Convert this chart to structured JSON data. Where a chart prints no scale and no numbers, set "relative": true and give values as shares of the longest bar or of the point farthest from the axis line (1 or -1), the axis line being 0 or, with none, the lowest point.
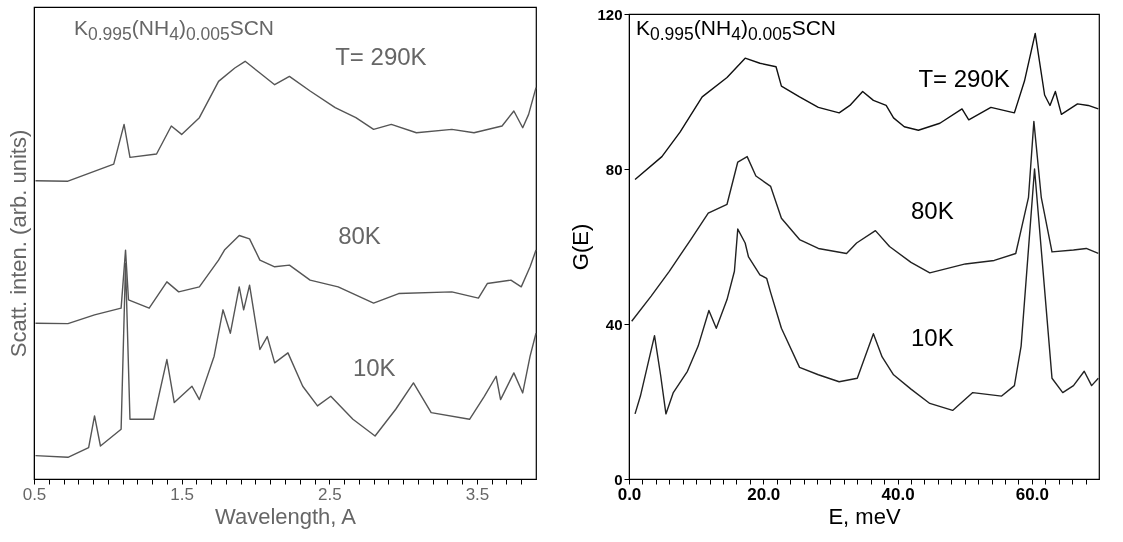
{
  "chart_data": [
    {
      "type": "line",
      "relative": true,
      "tick_labels": "x",
      "xlabel": "Wavelength, A",
      "ylabel": "Scatt. inten. (arb. units)",
      "annotations": [
        "K$_{0.995}$(NH$_{4}$)$_{0.005}$SCN"
      ],
      "xlim": [
        0.5,
        3.9
      ],
      "xticks": [
        0.5,
        {
          "value": 0.6,
          "label": null
        },
        {
          "value": 0.7,
          "label": null
        },
        {
          "value": 0.8,
          "label": null
        },
        {
          "value": 0.9,
          "label": null
        },
        {
          "value": 1.0,
          "label": null
        },
        {
          "value": 1.1,
          "label": null
        },
        {
          "value": 1.2,
          "label": null
        },
        {
          "value": 1.3,
          "label": null
        },
        {
          "value": 1.4,
          "label": null
        },
        1.5,
        {
          "value": 1.6,
          "label": null
        },
        {
          "value": 1.7,
          "label": null
        },
        {
          "value": 1.8,
          "label": null
        },
        {
          "value": 1.9,
          "label": null
        },
        {
          "value": 2.0,
          "label": null
        },
        {
          "value": 2.1,
          "label": null
        },
        {
          "value": 2.2,
          "label": null
        },
        {
          "value": 2.3,
          "label": null
        },
        {
          "value": 2.4,
          "label": null
        },
        2.5,
        {
          "value": 2.6,
          "label": null
        },
        {
          "value": 2.7,
          "label": null
        },
        {
          "value": 2.8,
          "label": null
        },
        {
          "value": 2.9,
          "label": null
        },
        {
          "value": 3.0,
          "label": null
        },
        {
          "value": 3.1,
          "label": null
        },
        {
          "value": 3.2,
          "label": null
        },
        {
          "value": 3.3,
          "label": null
        },
        {
          "value": 3.4,
          "label": null
        },
        3.5,
        {
          "value": 3.6,
          "label": null
        },
        {
          "value": 3.7,
          "label": null
        },
        {
          "value": 3.8,
          "label": null
        }
      ],
      "series": [
        {
          "name": "T= 290K",
          "color": "#555555",
          "x": [
            0.51,
            0.73,
            1.04,
            1.11,
            1.15,
            1.33,
            1.43,
            1.5,
            1.62,
            1.75,
            1.86,
            1.93,
            2.03,
            2.13,
            2.23,
            2.37,
            2.54,
            2.68,
            2.8,
            2.92,
            3.09,
            3.33,
            3.48,
            3.67,
            3.75,
            3.81,
            3.85,
            3.9
          ],
          "values": [
            0.714,
            0.713,
            0.754,
            0.849,
            0.77,
            0.778,
            0.845,
            0.825,
            0.865,
            0.952,
            0.984,
            1.0,
            0.972,
            0.944,
            0.964,
            0.929,
            0.889,
            0.865,
            0.837,
            0.849,
            0.829,
            0.837,
            0.829,
            0.845,
            0.881,
            0.841,
            0.873,
            0.937
          ]
        },
        {
          "name": "80K",
          "color": "#555555",
          "x": [
            0.51,
            0.73,
            0.91,
            1.09,
            1.12,
            1.14,
            1.28,
            1.4,
            1.48,
            1.62,
            1.75,
            1.79,
            1.89,
            1.96,
            2.03,
            2.13,
            2.23,
            2.37,
            2.56,
            2.8,
            2.97,
            3.33,
            3.51,
            3.57,
            3.73,
            3.8,
            3.86,
            3.9
          ],
          "values": [
            0.373,
            0.372,
            0.393,
            0.409,
            0.548,
            0.429,
            0.409,
            0.472,
            0.448,
            0.46,
            0.524,
            0.548,
            0.583,
            0.575,
            0.524,
            0.508,
            0.512,
            0.476,
            0.46,
            0.421,
            0.444,
            0.448,
            0.433,
            0.468,
            0.476,
            0.46,
            0.508,
            0.548
          ]
        },
        {
          "name": "10K",
          "color": "#555555",
          "x": [
            0.51,
            0.73,
            0.87,
            0.91,
            0.95,
            1.09,
            1.12,
            1.15,
            1.31,
            1.4,
            1.45,
            1.57,
            1.62,
            1.72,
            1.78,
            1.83,
            1.89,
            1.92,
            1.96,
            2.03,
            2.08,
            2.13,
            2.22,
            2.32,
            2.42,
            2.51,
            2.66,
            2.81,
            2.95,
            3.07,
            3.19,
            3.45,
            3.55,
            3.63,
            3.66,
            3.75,
            3.81,
            3.86,
            3.9
          ],
          "values": [
            0.056,
            0.052,
            0.075,
            0.151,
            0.079,
            0.119,
            0.516,
            0.143,
            0.143,
            0.286,
            0.183,
            0.222,
            0.19,
            0.294,
            0.405,
            0.349,
            0.46,
            0.405,
            0.464,
            0.31,
            0.341,
            0.278,
            0.302,
            0.222,
            0.175,
            0.198,
            0.143,
            0.103,
            0.167,
            0.23,
            0.159,
            0.143,
            0.198,
            0.246,
            0.19,
            0.254,
            0.206,
            0.294,
            0.349
          ]
        }
      ]
    },
    {
      "type": "line",
      "xlabel": "E,  meV",
      "ylabel": "G(E)",
      "annotations": [
        "K$_{0.995}$(NH$_{4}$)$_{0.005}$SCN"
      ],
      "xlim": [
        0,
        70
      ],
      "xticks": [
        {
          "value": 0,
          "label": "0.0"
        },
        {
          "value": 2,
          "label": null
        },
        {
          "value": 4,
          "label": null
        },
        {
          "value": 6,
          "label": null
        },
        {
          "value": 8,
          "label": null
        },
        {
          "value": 10,
          "label": null
        },
        {
          "value": 12,
          "label": null
        },
        {
          "value": 14,
          "label": null
        },
        {
          "value": 16,
          "label": null
        },
        {
          "value": 18,
          "label": null
        },
        {
          "value": 20,
          "label": "20.0"
        },
        {
          "value": 22,
          "label": null
        },
        {
          "value": 24,
          "label": null
        },
        {
          "value": 26,
          "label": null
        },
        {
          "value": 28,
          "label": null
        },
        {
          "value": 30,
          "label": null
        },
        {
          "value": 32,
          "label": null
        },
        {
          "value": 34,
          "label": null
        },
        {
          "value": 36,
          "label": null
        },
        {
          "value": 38,
          "label": null
        },
        {
          "value": 40,
          "label": "40.0"
        },
        {
          "value": 42,
          "label": null
        },
        {
          "value": 44,
          "label": null
        },
        {
          "value": 46,
          "label": null
        },
        {
          "value": 48,
          "label": null
        },
        {
          "value": 50,
          "label": null
        },
        {
          "value": 52,
          "label": null
        },
        {
          "value": 54,
          "label": null
        },
        {
          "value": 56,
          "label": null
        },
        {
          "value": 58,
          "label": null
        },
        {
          "value": 60,
          "label": "60.0"
        },
        {
          "value": 62,
          "label": null
        },
        {
          "value": 64,
          "label": null
        },
        {
          "value": 66,
          "label": null
        },
        {
          "value": 68,
          "label": null
        }
      ],
      "ylim": [
        0,
        120
      ],
      "yticks": [
        0,
        40,
        80,
        120
      ],
      "series": [
        {
          "name": "T= 290K",
          "color": "#111111",
          "x": [
            0.9,
            4.9,
            7.6,
            10.9,
            14.6,
            17.3,
            19.5,
            21.9,
            22.7,
            25.4,
            28.2,
            31.3,
            32.9,
            34.8,
            36.4,
            38.3,
            39.4,
            41,
            43.1,
            46.3,
            49.6,
            50.6,
            53.9,
            57.4,
            58.9,
            60.5,
            61.9,
            62.7,
            63.5,
            64.4,
            66.8,
            68.4,
            69.9
          ],
          "values": [
            77.3,
            83.2,
            89.5,
            98.6,
            103.6,
            108.6,
            107.3,
            106.4,
            101.4,
            98.6,
            95.9,
            94.5,
            96.4,
            100,
            97.7,
            96.4,
            93.2,
            90.9,
            90,
            91.8,
            95.5,
            92.7,
            95.9,
            94.5,
            102.7,
            115,
            99.1,
            96.4,
            100,
            94.1,
            96.8,
            96.4,
            95.5
          ]
        },
        {
          "name": "80K",
          "color": "#222222",
          "x": [
            0.4,
            3.3,
            6.0,
            9.2,
            11.8,
            14.6,
            16.2,
            17.6,
            18.9,
            21.1,
            22.7,
            25.4,
            28.2,
            32.4,
            33.9,
            36.7,
            38.8,
            42,
            44.8,
            50.1,
            54.4,
            57.6,
            59.5,
            60.3,
            61.4,
            63,
            66.2,
            68.1,
            69.9
          ],
          "values": [
            40.7,
            47.2,
            53.6,
            61.8,
            68.6,
            70.9,
            81.8,
            83.2,
            78.2,
            75.5,
            67.3,
            61.8,
            59.5,
            58.2,
            60.9,
            64.1,
            60,
            55.9,
            53.2,
            55.5,
            56.4,
            58.2,
            72.7,
            92.3,
            72.7,
            58.6,
            59.1,
            59.5,
            58.2
          ]
        },
        {
          "name": "10K",
          "color": "#222222",
          "x": [
            0.9,
            1.7,
            3.8,
            4.7,
            5.5,
            6.6,
            8.7,
            10.3,
            11.9,
            13,
            14.6,
            15.7,
            16.2,
            17.3,
            17.8,
            19.5,
            20.5,
            21.1,
            22.7,
            25.4,
            28.2,
            31.3,
            34,
            36.4,
            37.7,
            39.4,
            42,
            44.8,
            48.2,
            51.2,
            55.5,
            57.4,
            58.4,
            60.4,
            63,
            64.6,
            66.2,
            67.8,
            68.9,
            69.9
          ],
          "values": [
            16.8,
            21.4,
            37,
            26.9,
            16.8,
            22.3,
            27.8,
            34.3,
            43.5,
            38.9,
            46.3,
            53.6,
            64.5,
            60.9,
            57.3,
            52.7,
            51.8,
            48.1,
            38.9,
            28.8,
            26.9,
            25.1,
            26,
            37.5,
            31.5,
            26.9,
            23.2,
            19.5,
            17.7,
            22.3,
            21.4,
            24.1,
            34.3,
            80,
            26,
            22.3,
            24.1,
            27.8,
            24.1,
            26
          ]
        }
      ]
    }
  ]
}
